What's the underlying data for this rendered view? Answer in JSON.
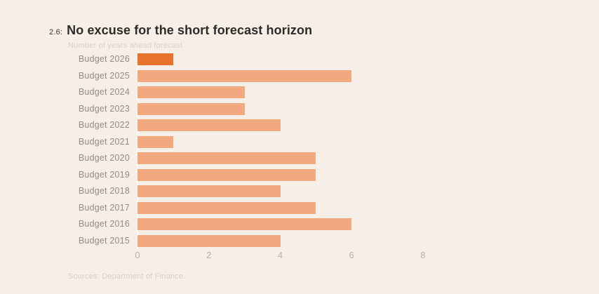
{
  "chart": {
    "figure_number": "2.6:",
    "title": "No excuse for the short forecast horizon",
    "subtitle": "Number of years ahead forecast",
    "sources": "Sources: Department of Finance."
  },
  "chart_data": {
    "type": "bar",
    "orientation": "horizontal",
    "title": "No excuse for the short forecast horizon",
    "subtitle": "Number of years ahead forecast",
    "categories": [
      "Budget 2026",
      "Budget 2025",
      "Budget 2024",
      "Budget 2023",
      "Budget 2022",
      "Budget 2021",
      "Budget 2020",
      "Budget 2019",
      "Budget 2018",
      "Budget 2017",
      "Budget 2016",
      "Budget 2015"
    ],
    "values": [
      1,
      6,
      3,
      3,
      4,
      1,
      5,
      5,
      4,
      5,
      6,
      4
    ],
    "highlight_index": 0,
    "xlabel": "",
    "ylabel": "",
    "xlim": [
      0,
      8
    ],
    "xticks": [
      0,
      2,
      4,
      6,
      8
    ],
    "grid": false,
    "legend": "none",
    "colors": {
      "highlight": "#e7732c",
      "default": "#f2a980",
      "background": "#f5efe8",
      "axis_line": "#ffffff"
    }
  }
}
